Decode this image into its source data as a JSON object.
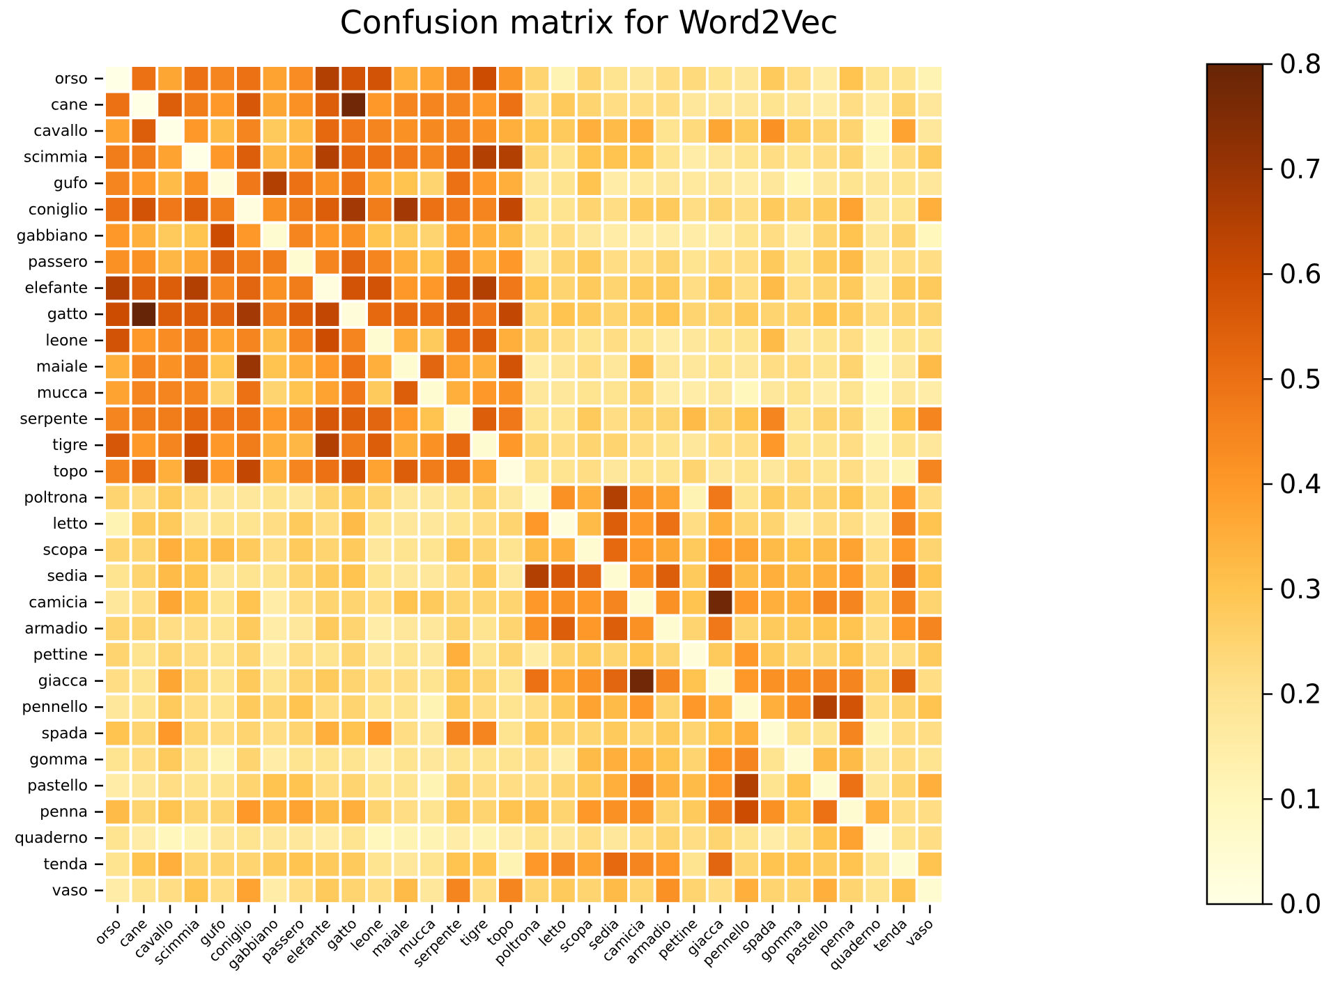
{
  "chart_data": {
    "type": "heatmap",
    "title": "Confusion matrix for Word2Vec",
    "xlabel": "",
    "ylabel": "",
    "labels": [
      "orso",
      "cane",
      "cavallo",
      "scimmia",
      "gufo",
      "coniglio",
      "gabbiano",
      "passero",
      "elefante",
      "gatto",
      "leone",
      "maiale",
      "mucca",
      "serpente",
      "tigre",
      "topo",
      "poltrona",
      "letto",
      "scopa",
      "sedia",
      "camicia",
      "armadio",
      "pettine",
      "giacca",
      "pennello",
      "spada",
      "gomma",
      "pastello",
      "penna",
      "quaderno",
      "tenda",
      "vaso"
    ],
    "colorbar": {
      "min": 0.0,
      "max": 0.8,
      "ticks": [
        "0.0",
        "0.1",
        "0.2",
        "0.3",
        "0.4",
        "0.5",
        "0.6",
        "0.7",
        "0.8"
      ],
      "colormap": "YlOrBr",
      "colors": [
        "#ffffe5",
        "#fff7bc",
        "#fee391",
        "#fec44f",
        "#fe9929",
        "#ec7014",
        "#cc4c02",
        "#993404",
        "#662506"
      ]
    },
    "matrix": [
      [
        0.0,
        0.5,
        0.37,
        0.5,
        0.45,
        0.5,
        0.38,
        0.43,
        0.65,
        0.58,
        0.58,
        0.35,
        0.38,
        0.47,
        0.6,
        0.41,
        0.25,
        0.12,
        0.25,
        0.2,
        0.18,
        0.22,
        0.23,
        0.2,
        0.18,
        0.28,
        0.22,
        0.15,
        0.3,
        0.2,
        0.2,
        0.12
      ],
      [
        0.5,
        0.0,
        0.55,
        0.47,
        0.4,
        0.57,
        0.37,
        0.42,
        0.55,
        0.78,
        0.4,
        0.45,
        0.45,
        0.45,
        0.4,
        0.5,
        0.22,
        0.28,
        0.25,
        0.22,
        0.22,
        0.22,
        0.18,
        0.18,
        0.18,
        0.2,
        0.18,
        0.15,
        0.22,
        0.15,
        0.25,
        0.18
      ],
      [
        0.38,
        0.55,
        0.0,
        0.4,
        0.32,
        0.45,
        0.28,
        0.32,
        0.52,
        0.48,
        0.45,
        0.42,
        0.44,
        0.45,
        0.42,
        0.35,
        0.3,
        0.28,
        0.35,
        0.32,
        0.35,
        0.2,
        0.23,
        0.37,
        0.28,
        0.42,
        0.28,
        0.25,
        0.25,
        0.1,
        0.38,
        0.18
      ],
      [
        0.47,
        0.47,
        0.38,
        0.0,
        0.4,
        0.55,
        0.33,
        0.37,
        0.65,
        0.52,
        0.5,
        0.48,
        0.45,
        0.52,
        0.65,
        0.65,
        0.25,
        0.2,
        0.3,
        0.3,
        0.3,
        0.2,
        0.15,
        0.18,
        0.2,
        0.22,
        0.2,
        0.22,
        0.25,
        0.12,
        0.22,
        0.28
      ],
      [
        0.45,
        0.4,
        0.32,
        0.42,
        0.03,
        0.48,
        0.65,
        0.5,
        0.42,
        0.5,
        0.35,
        0.3,
        0.25,
        0.5,
        0.4,
        0.35,
        0.18,
        0.2,
        0.3,
        0.15,
        0.17,
        0.18,
        0.17,
        0.18,
        0.15,
        0.18,
        0.1,
        0.18,
        0.2,
        0.18,
        0.2,
        0.18
      ],
      [
        0.5,
        0.58,
        0.48,
        0.55,
        0.47,
        0.02,
        0.42,
        0.47,
        0.55,
        0.68,
        0.47,
        0.68,
        0.5,
        0.48,
        0.45,
        0.62,
        0.2,
        0.2,
        0.25,
        0.22,
        0.28,
        0.28,
        0.22,
        0.25,
        0.22,
        0.28,
        0.25,
        0.28,
        0.38,
        0.18,
        0.2,
        0.35
      ],
      [
        0.4,
        0.35,
        0.28,
        0.3,
        0.6,
        0.4,
        0.05,
        0.45,
        0.4,
        0.42,
        0.3,
        0.28,
        0.25,
        0.38,
        0.35,
        0.32,
        0.2,
        0.22,
        0.18,
        0.15,
        0.15,
        0.15,
        0.15,
        0.15,
        0.2,
        0.22,
        0.15,
        0.25,
        0.3,
        0.18,
        0.25,
        0.1
      ],
      [
        0.42,
        0.42,
        0.33,
        0.37,
        0.53,
        0.47,
        0.47,
        0.05,
        0.45,
        0.53,
        0.45,
        0.35,
        0.3,
        0.45,
        0.35,
        0.4,
        0.18,
        0.25,
        0.28,
        0.22,
        0.22,
        0.25,
        0.2,
        0.22,
        0.22,
        0.28,
        0.2,
        0.28,
        0.32,
        0.18,
        0.22,
        0.22
      ],
      [
        0.65,
        0.55,
        0.55,
        0.65,
        0.45,
        0.53,
        0.42,
        0.47,
        0.02,
        0.58,
        0.58,
        0.4,
        0.4,
        0.55,
        0.65,
        0.48,
        0.3,
        0.25,
        0.28,
        0.25,
        0.28,
        0.28,
        0.22,
        0.28,
        0.22,
        0.32,
        0.22,
        0.25,
        0.28,
        0.15,
        0.28,
        0.28
      ],
      [
        0.6,
        0.8,
        0.55,
        0.55,
        0.53,
        0.68,
        0.47,
        0.55,
        0.62,
        0.03,
        0.52,
        0.52,
        0.5,
        0.55,
        0.48,
        0.62,
        0.25,
        0.3,
        0.28,
        0.25,
        0.28,
        0.3,
        0.25,
        0.25,
        0.28,
        0.25,
        0.25,
        0.3,
        0.28,
        0.22,
        0.25,
        0.25
      ],
      [
        0.58,
        0.4,
        0.43,
        0.47,
        0.38,
        0.45,
        0.32,
        0.45,
        0.6,
        0.45,
        0.05,
        0.35,
        0.28,
        0.5,
        0.55,
        0.35,
        0.25,
        0.22,
        0.2,
        0.22,
        0.2,
        0.15,
        0.18,
        0.2,
        0.2,
        0.32,
        0.18,
        0.2,
        0.22,
        0.12,
        0.2,
        0.2
      ],
      [
        0.35,
        0.45,
        0.42,
        0.47,
        0.3,
        0.7,
        0.3,
        0.35,
        0.4,
        0.5,
        0.35,
        0.05,
        0.53,
        0.38,
        0.35,
        0.58,
        0.15,
        0.18,
        0.22,
        0.18,
        0.32,
        0.18,
        0.18,
        0.2,
        0.18,
        0.22,
        0.22,
        0.2,
        0.25,
        0.1,
        0.18,
        0.32
      ],
      [
        0.38,
        0.45,
        0.45,
        0.45,
        0.25,
        0.5,
        0.25,
        0.3,
        0.38,
        0.48,
        0.28,
        0.55,
        0.05,
        0.35,
        0.4,
        0.42,
        0.18,
        0.18,
        0.2,
        0.2,
        0.25,
        0.15,
        0.15,
        0.18,
        0.1,
        0.18,
        0.2,
        0.15,
        0.2,
        0.1,
        0.18,
        0.15
      ],
      [
        0.45,
        0.47,
        0.47,
        0.52,
        0.48,
        0.5,
        0.4,
        0.45,
        0.57,
        0.55,
        0.53,
        0.4,
        0.3,
        0.05,
        0.55,
        0.48,
        0.2,
        0.2,
        0.28,
        0.22,
        0.25,
        0.25,
        0.32,
        0.25,
        0.3,
        0.45,
        0.2,
        0.25,
        0.25,
        0.12,
        0.3,
        0.45
      ],
      [
        0.57,
        0.4,
        0.45,
        0.6,
        0.4,
        0.47,
        0.35,
        0.33,
        0.65,
        0.47,
        0.55,
        0.35,
        0.42,
        0.52,
        0.05,
        0.4,
        0.25,
        0.22,
        0.25,
        0.25,
        0.22,
        0.2,
        0.18,
        0.22,
        0.22,
        0.4,
        0.2,
        0.2,
        0.22,
        0.12,
        0.2,
        0.18
      ],
      [
        0.45,
        0.52,
        0.35,
        0.63,
        0.4,
        0.62,
        0.35,
        0.45,
        0.5,
        0.57,
        0.38,
        0.55,
        0.47,
        0.5,
        0.38,
        0.02,
        0.2,
        0.2,
        0.22,
        0.18,
        0.2,
        0.2,
        0.25,
        0.18,
        0.2,
        0.18,
        0.22,
        0.2,
        0.22,
        0.15,
        0.12,
        0.45
      ],
      [
        0.25,
        0.22,
        0.28,
        0.22,
        0.18,
        0.18,
        0.2,
        0.18,
        0.25,
        0.28,
        0.25,
        0.18,
        0.18,
        0.2,
        0.25,
        0.18,
        0.05,
        0.42,
        0.35,
        0.65,
        0.42,
        0.38,
        0.12,
        0.48,
        0.2,
        0.28,
        0.25,
        0.25,
        0.3,
        0.2,
        0.4,
        0.22
      ],
      [
        0.12,
        0.28,
        0.28,
        0.18,
        0.2,
        0.2,
        0.22,
        0.28,
        0.22,
        0.32,
        0.2,
        0.18,
        0.18,
        0.2,
        0.22,
        0.25,
        0.4,
        0.03,
        0.32,
        0.55,
        0.4,
        0.5,
        0.22,
        0.35,
        0.25,
        0.25,
        0.15,
        0.22,
        0.22,
        0.15,
        0.45,
        0.3
      ],
      [
        0.25,
        0.25,
        0.35,
        0.3,
        0.32,
        0.28,
        0.22,
        0.28,
        0.25,
        0.28,
        0.18,
        0.2,
        0.2,
        0.28,
        0.25,
        0.2,
        0.32,
        0.35,
        0.05,
        0.52,
        0.4,
        0.37,
        0.28,
        0.4,
        0.38,
        0.32,
        0.3,
        0.32,
        0.38,
        0.22,
        0.4,
        0.25
      ],
      [
        0.2,
        0.25,
        0.32,
        0.3,
        0.18,
        0.2,
        0.2,
        0.25,
        0.28,
        0.3,
        0.2,
        0.18,
        0.18,
        0.22,
        0.28,
        0.18,
        0.65,
        0.57,
        0.53,
        0.05,
        0.42,
        0.55,
        0.28,
        0.52,
        0.32,
        0.35,
        0.32,
        0.35,
        0.4,
        0.25,
        0.5,
        0.3
      ],
      [
        0.18,
        0.22,
        0.37,
        0.3,
        0.2,
        0.3,
        0.15,
        0.22,
        0.25,
        0.25,
        0.22,
        0.3,
        0.28,
        0.25,
        0.25,
        0.25,
        0.4,
        0.42,
        0.4,
        0.45,
        0.05,
        0.42,
        0.3,
        0.78,
        0.4,
        0.35,
        0.35,
        0.45,
        0.45,
        0.25,
        0.45,
        0.25
      ],
      [
        0.25,
        0.25,
        0.22,
        0.22,
        0.2,
        0.28,
        0.15,
        0.18,
        0.28,
        0.25,
        0.15,
        0.18,
        0.18,
        0.25,
        0.2,
        0.25,
        0.42,
        0.55,
        0.4,
        0.55,
        0.42,
        0.05,
        0.25,
        0.48,
        0.25,
        0.28,
        0.28,
        0.3,
        0.3,
        0.22,
        0.4,
        0.45
      ],
      [
        0.25,
        0.2,
        0.25,
        0.22,
        0.2,
        0.25,
        0.15,
        0.22,
        0.2,
        0.25,
        0.18,
        0.2,
        0.18,
        0.35,
        0.2,
        0.25,
        0.15,
        0.25,
        0.28,
        0.25,
        0.3,
        0.25,
        0.03,
        0.28,
        0.4,
        0.28,
        0.25,
        0.25,
        0.3,
        0.22,
        0.22,
        0.28
      ],
      [
        0.22,
        0.2,
        0.37,
        0.25,
        0.2,
        0.28,
        0.2,
        0.25,
        0.28,
        0.25,
        0.22,
        0.22,
        0.2,
        0.28,
        0.25,
        0.2,
        0.5,
        0.38,
        0.42,
        0.53,
        0.78,
        0.45,
        0.3,
        0.05,
        0.4,
        0.42,
        0.42,
        0.45,
        0.45,
        0.25,
        0.55,
        0.22
      ],
      [
        0.18,
        0.2,
        0.28,
        0.22,
        0.2,
        0.28,
        0.25,
        0.3,
        0.22,
        0.25,
        0.2,
        0.2,
        0.12,
        0.28,
        0.22,
        0.2,
        0.22,
        0.28,
        0.38,
        0.32,
        0.4,
        0.25,
        0.4,
        0.35,
        0.05,
        0.35,
        0.42,
        0.65,
        0.58,
        0.22,
        0.25,
        0.3
      ],
      [
        0.3,
        0.25,
        0.4,
        0.25,
        0.22,
        0.25,
        0.22,
        0.25,
        0.35,
        0.3,
        0.4,
        0.22,
        0.18,
        0.45,
        0.45,
        0.2,
        0.28,
        0.25,
        0.25,
        0.28,
        0.25,
        0.28,
        0.25,
        0.3,
        0.35,
        0.05,
        0.2,
        0.2,
        0.45,
        0.12,
        0.22,
        0.22
      ],
      [
        0.2,
        0.22,
        0.28,
        0.2,
        0.12,
        0.25,
        0.15,
        0.2,
        0.2,
        0.2,
        0.15,
        0.2,
        0.18,
        0.2,
        0.2,
        0.2,
        0.22,
        0.15,
        0.32,
        0.35,
        0.35,
        0.3,
        0.25,
        0.4,
        0.45,
        0.2,
        0.05,
        0.32,
        0.32,
        0.18,
        0.22,
        0.2
      ],
      [
        0.15,
        0.18,
        0.22,
        0.2,
        0.2,
        0.25,
        0.3,
        0.3,
        0.22,
        0.25,
        0.2,
        0.2,
        0.12,
        0.25,
        0.22,
        0.22,
        0.22,
        0.25,
        0.28,
        0.35,
        0.45,
        0.35,
        0.32,
        0.4,
        0.65,
        0.2,
        0.3,
        0.05,
        0.5,
        0.18,
        0.25,
        0.35
      ],
      [
        0.32,
        0.25,
        0.3,
        0.25,
        0.25,
        0.4,
        0.35,
        0.38,
        0.32,
        0.35,
        0.25,
        0.22,
        0.2,
        0.28,
        0.25,
        0.3,
        0.32,
        0.25,
        0.4,
        0.42,
        0.42,
        0.25,
        0.28,
        0.45,
        0.6,
        0.42,
        0.3,
        0.5,
        0.05,
        0.35,
        0.22,
        0.22
      ],
      [
        0.2,
        0.15,
        0.1,
        0.12,
        0.18,
        0.2,
        0.18,
        0.18,
        0.15,
        0.2,
        0.1,
        0.12,
        0.12,
        0.15,
        0.12,
        0.15,
        0.2,
        0.18,
        0.22,
        0.18,
        0.22,
        0.25,
        0.22,
        0.25,
        0.2,
        0.15,
        0.2,
        0.3,
        0.38,
        0.03,
        0.2,
        0.22
      ],
      [
        0.2,
        0.3,
        0.35,
        0.25,
        0.25,
        0.25,
        0.28,
        0.3,
        0.28,
        0.28,
        0.2,
        0.18,
        0.2,
        0.3,
        0.3,
        0.12,
        0.4,
        0.45,
        0.38,
        0.52,
        0.45,
        0.4,
        0.2,
        0.53,
        0.25,
        0.3,
        0.3,
        0.28,
        0.3,
        0.2,
        0.05,
        0.3
      ],
      [
        0.15,
        0.2,
        0.22,
        0.3,
        0.22,
        0.38,
        0.15,
        0.22,
        0.28,
        0.25,
        0.22,
        0.32,
        0.18,
        0.45,
        0.22,
        0.45,
        0.25,
        0.28,
        0.25,
        0.32,
        0.25,
        0.42,
        0.25,
        0.22,
        0.35,
        0.25,
        0.25,
        0.35,
        0.25,
        0.2,
        0.3,
        0.05
      ]
    ]
  }
}
